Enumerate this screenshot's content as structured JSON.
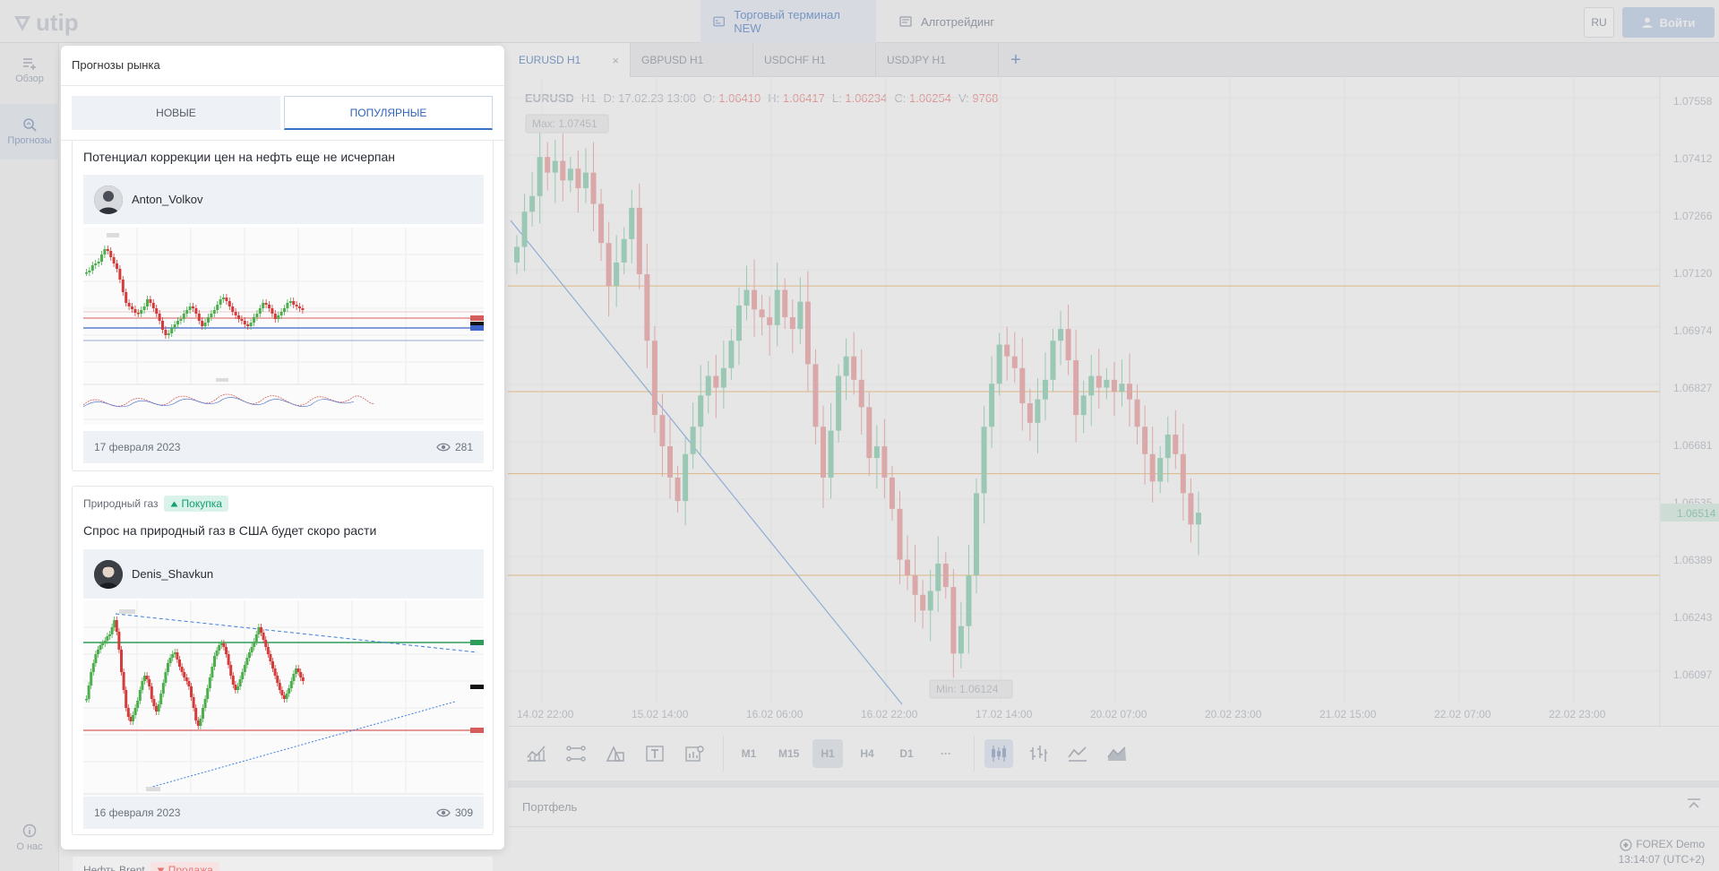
{
  "header": {
    "logo_text": "utip",
    "nav": [
      {
        "label": "Торговый терминал NEW",
        "active": true
      },
      {
        "label": "Алготрейдинг",
        "active": false
      }
    ],
    "lang": "RU",
    "login_label": "Войти"
  },
  "rail": {
    "items": [
      {
        "label": "Обзор",
        "icon": "list-add-icon"
      },
      {
        "label": "Прогнозы",
        "icon": "magnifier-icon"
      },
      {
        "label": "О нас",
        "icon": "info-icon"
      }
    ]
  },
  "chart_tabs": [
    {
      "label": "EURUSD H1",
      "active": true
    },
    {
      "label": "GBPUSD H1",
      "active": false
    },
    {
      "label": "USDCHF H1",
      "active": false
    },
    {
      "label": "USDJPY H1",
      "active": false
    }
  ],
  "chart_tab_close": "×",
  "chart_tab_add": "+",
  "chart": {
    "symbol": "EURUSD",
    "timeframe": "H1",
    "d_label": "D:",
    "date": "17.02.23 13:00",
    "o_label": "O:",
    "open": "1.06410",
    "h_label": "H:",
    "high": "1.06417",
    "l_label": "L:",
    "low": "1.06234",
    "c_label": "C:",
    "close": "1.06254",
    "v_label": "V:",
    "volume": "9768",
    "max_label": "Max: 1.07451",
    "min_label": "Min: 1.06124",
    "current_price": "1.06514",
    "y_ticks": [
      "1.07558",
      "1.07412",
      "1.07266",
      "1.07120",
      "1.06974",
      "1.06827",
      "1.06681",
      "1.06535",
      "1.06389",
      "1.06243",
      "1.06097"
    ],
    "x_ticks": [
      "14.02 22:00",
      "15.02 14:00",
      "16.02 06:00",
      "16.02 22:00",
      "17.02 14:00",
      "20.02 07:00",
      "20.02 23:00",
      "21.02 15:00",
      "22.02 07:00",
      "22.02 23:00"
    ]
  },
  "chart_data": {
    "type": "candlestick",
    "ylim": [
      1.0605,
      1.0762
    ],
    "x_ticks": [
      "14.02 22:00",
      "15.02 14:00",
      "16.02 06:00",
      "16.02 22:00",
      "17.02 14:00",
      "20.02 07:00",
      "20.02 23:00",
      "21.02 15:00",
      "22.02 07:00",
      "22.02 23:00"
    ],
    "horizontal_levels": [
      1.0712,
      1.0685,
      1.0664,
      1.0638
    ],
    "closes": [
      1.0722,
      1.0731,
      1.0735,
      1.0745,
      1.0741,
      1.0744,
      1.0739,
      1.0742,
      1.0737,
      1.0741,
      1.0733,
      1.0723,
      1.0712,
      1.0718,
      1.0724,
      1.0732,
      1.0715,
      1.0698,
      1.0679,
      1.0671,
      1.0663,
      1.0657,
      1.0669,
      1.0676,
      1.0684,
      1.0689,
      1.0686,
      1.0691,
      1.0698,
      1.0707,
      1.0711,
      1.0706,
      1.0704,
      1.0702,
      1.0711,
      1.0704,
      1.0701,
      1.0708,
      1.0692,
      1.0676,
      1.0663,
      1.0675,
      1.0689,
      1.0694,
      1.0688,
      1.0681,
      1.0668,
      1.0671,
      1.0663,
      1.0655,
      1.0642,
      1.0638,
      1.0633,
      1.0629,
      1.0634,
      1.0641,
      1.0635,
      1.0618,
      1.0625,
      1.0638,
      1.0659,
      1.0676,
      1.0687,
      1.0697,
      1.0694,
      1.0691,
      1.0682,
      1.0677,
      1.0683,
      1.0688,
      1.0698,
      1.0701,
      1.0693,
      1.0679,
      1.0684,
      1.0689,
      1.0686,
      1.0688,
      1.0685,
      1.0687,
      1.0683,
      1.0676,
      1.0669,
      1.0662,
      1.0668,
      1.0674,
      1.0669,
      1.0659,
      1.0651,
      1.0654
    ],
    "title": "",
    "xlabel": "",
    "ylabel": ""
  },
  "toolbar": {
    "tools": [
      "indicators-icon",
      "trendline-icon",
      "shapes-icon",
      "text-icon",
      "chart-settings-icon"
    ],
    "timeframes": [
      {
        "label": "M1",
        "active": false
      },
      {
        "label": "M15",
        "active": false
      },
      {
        "label": "H1",
        "active": true
      },
      {
        "label": "H4",
        "active": false
      },
      {
        "label": "D1",
        "active": false
      },
      {
        "label": "···",
        "active": false
      }
    ],
    "chart_types": [
      "candles-icon",
      "bars-icon",
      "line-icon",
      "area-icon"
    ]
  },
  "portfolio": {
    "title": "Портфель",
    "account_type": "FOREX Demo",
    "clock": "13:14:07 (UTC+2)"
  },
  "panel": {
    "title": "Прогнозы рынка",
    "tabs": [
      {
        "label": "НОВЫЕ",
        "active": false
      },
      {
        "label": "ПОПУЛЯРНЫЕ",
        "active": true
      }
    ],
    "cards": [
      {
        "title": "Потенциал коррекции цен на нефть еще не исчерпан",
        "author": "Anton_Volkov",
        "date": "17 февраля 2023",
        "views": "281"
      },
      {
        "instrument": "Природный газ",
        "badge": "Покупка",
        "title": "Спрос на природный газ в США будет скоро расти",
        "author": "Denis_Shavkun",
        "date": "16 февраля 2023",
        "views": "309"
      },
      {
        "instrument": "Нефть Brent",
        "badge": "Продажа"
      }
    ]
  },
  "colors": {
    "accent": "#2f63b8",
    "bull": "#12a06e",
    "bear": "#e25b5b"
  }
}
